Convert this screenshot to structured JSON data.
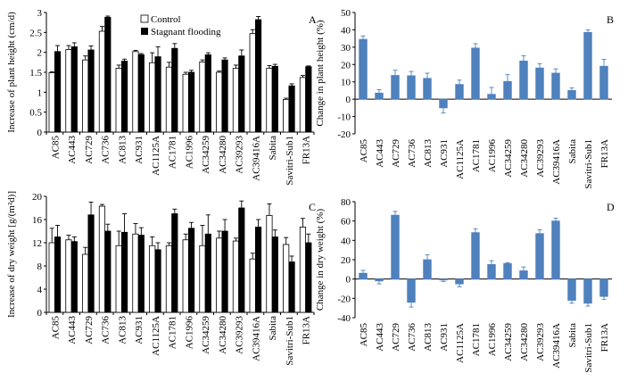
{
  "categories": [
    "AC85",
    "AC443",
    "AC729",
    "AC736",
    "AC813",
    "AC931",
    "AC1125A",
    "AC1781",
    "AC1996",
    "AC34259",
    "AC34280",
    "AC39293",
    "AC39416A",
    "Sabita",
    "Savitri-Sub1",
    "FR13A"
  ],
  "chart_data": [
    {
      "panel": "A",
      "type": "bar",
      "ylabel": "Increase of plant height (cm/d)",
      "ylim": [
        0,
        3.0
      ],
      "yticks": [
        0,
        0.5,
        1.0,
        1.5,
        2.0,
        2.5,
        3.0
      ],
      "ytick_labels": [
        "0",
        "0.5",
        "1",
        "1.5",
        "2",
        "2.5",
        "3"
      ],
      "legend_position": "top",
      "series": [
        {
          "name": "Control",
          "color": "#ffffff",
          "values": [
            1.49,
            2.07,
            1.81,
            2.53,
            1.6,
            2.02,
            1.74,
            1.63,
            1.45,
            1.76,
            1.5,
            1.6,
            2.47,
            1.6,
            0.82,
            1.37
          ],
          "errors": [
            0.02,
            0.1,
            0.1,
            0.12,
            0.08,
            0.03,
            0.25,
            0.12,
            0.05,
            0.05,
            0.03,
            0.08,
            0.1,
            0.07,
            0.03,
            0.05
          ]
        },
        {
          "name": "Stagnant flooding",
          "color": "#000000",
          "values": [
            2.02,
            2.14,
            2.06,
            2.88,
            1.78,
            1.94,
            1.89,
            2.1,
            1.5,
            1.94,
            1.81,
            1.91,
            2.82,
            1.65,
            1.16,
            1.64
          ],
          "errors": [
            0.15,
            0.1,
            0.1,
            0.03,
            0.05,
            0.03,
            0.25,
            0.12,
            0.05,
            0.05,
            0.05,
            0.15,
            0.08,
            0.05,
            0.05,
            0.02
          ]
        }
      ]
    },
    {
      "panel": "B",
      "type": "bar",
      "ylabel": "Change in plant height (%)",
      "ylim": [
        -20,
        50
      ],
      "yticks": [
        -20,
        -10,
        0,
        10,
        20,
        30,
        40,
        50
      ],
      "ytick_labels": [
        "-20",
        "-10",
        "0",
        "10",
        "20",
        "30",
        "40",
        "50"
      ],
      "series": [
        {
          "color": "#4f81bd",
          "values": [
            34.5,
            3.5,
            13.7,
            13.5,
            12.0,
            -5.0,
            8.5,
            29.5,
            2.8,
            10.2,
            22.0,
            18.0,
            15.0,
            5.0,
            38.5,
            19.0
          ],
          "errors": [
            2.0,
            2.0,
            3.0,
            2.5,
            3.0,
            3.0,
            2.5,
            2.5,
            4.0,
            4.0,
            3.0,
            2.5,
            2.5,
            1.5,
            1.5,
            4.0
          ]
        }
      ]
    },
    {
      "panel": "C",
      "type": "bar",
      "ylabel": "Increase of dry weight [g/(m²d)]",
      "ylim": [
        0,
        20
      ],
      "yticks": [
        0,
        4,
        8,
        12,
        16,
        20
      ],
      "ytick_labels": [
        "0",
        "4",
        "8",
        "12",
        "16",
        "20"
      ],
      "series": [
        {
          "name": "Control",
          "color": "#ffffff",
          "values": [
            12.0,
            12.5,
            10.0,
            18.3,
            11.5,
            13.5,
            11.5,
            11.5,
            12.5,
            11.5,
            12.8,
            12.3,
            9.2,
            16.7,
            11.7,
            14.7
          ],
          "errors": [
            2.5,
            0.8,
            1.2,
            0.3,
            2.5,
            1.8,
            1.5,
            0.5,
            1.0,
            3.5,
            1.2,
            0.5,
            1.0,
            2.0,
            1.2,
            1.5
          ]
        },
        {
          "name": "Stagnant flooding",
          "color": "#000000",
          "values": [
            13.0,
            12.2,
            16.8,
            14.0,
            13.8,
            13.3,
            10.8,
            17.0,
            14.5,
            13.5,
            14.0,
            18.0,
            14.7,
            13.0,
            8.7,
            12.0
          ],
          "errors": [
            2.0,
            0.8,
            2.2,
            1.2,
            3.2,
            1.3,
            1.2,
            0.8,
            1.0,
            3.3,
            2.0,
            1.2,
            1.3,
            1.2,
            1.0,
            1.5
          ]
        }
      ]
    },
    {
      "panel": "D",
      "type": "bar",
      "ylabel": "Change in dry weight (%)",
      "ylim": [
        -40,
        80
      ],
      "yticks": [
        -40,
        -20,
        0,
        20,
        40,
        60,
        80
      ],
      "ytick_labels": [
        "-40",
        "-20",
        "0",
        "20",
        "40",
        "60",
        "80"
      ],
      "series": [
        {
          "color": "#4f81bd",
          "values": [
            6.0,
            -2.0,
            66.0,
            -24.0,
            20.0,
            -1.0,
            -5.0,
            48.0,
            15.0,
            16.0,
            8.5,
            47.0,
            60.0,
            -22.0,
            -25.0,
            -18.0
          ],
          "errors": [
            3.0,
            3.0,
            4.0,
            5.0,
            5.0,
            1.5,
            3.0,
            4.0,
            4.0,
            1.0,
            4.0,
            4.0,
            3.0,
            3.0,
            3.0,
            3.0
          ]
        }
      ]
    }
  ]
}
